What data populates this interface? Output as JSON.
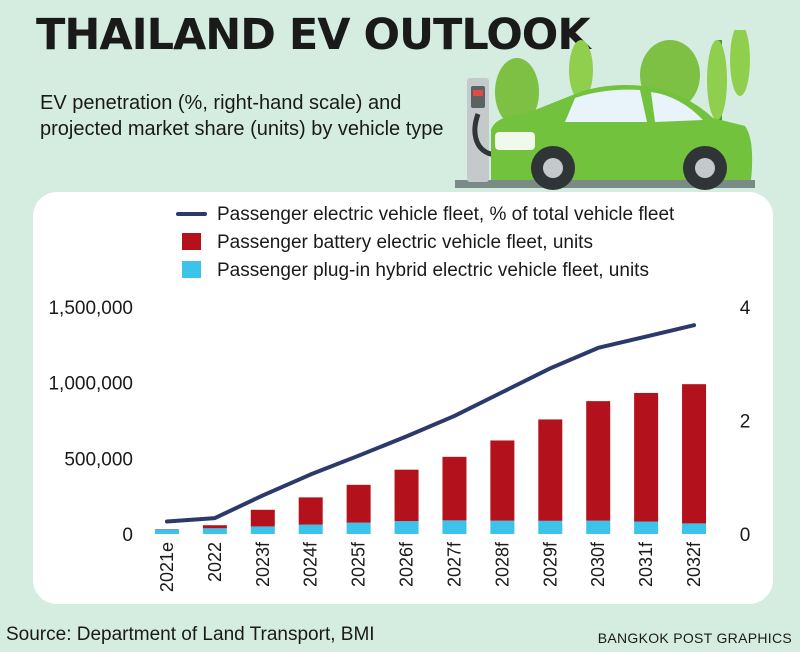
{
  "header": {
    "title": "THAILAND EV OUTLOOK",
    "subtitle": "EV penetration (%, right-hand scale) and projected market share (units) by vehicle type"
  },
  "footer": {
    "source": "Source:  Department of Land Transport, BMI",
    "credit": "BANGKOK POST GRAPHICS"
  },
  "illustration": {
    "icon": "ev-car-charging-icon"
  },
  "colors": {
    "background": "#d5ede0",
    "line": "#2b3a6b",
    "bev": "#b3121d",
    "phev": "#3cc3ea"
  },
  "chart_data": {
    "type": "bar",
    "stacked": true,
    "categories": [
      "2021e",
      "2022",
      "2023f",
      "2024f",
      "2025f",
      "2026f",
      "2027f",
      "2028f",
      "2029f",
      "2030f",
      "2031f",
      "2032f"
    ],
    "series": [
      {
        "name": "Passenger battery electric vehicle fleet, units",
        "type": "bar",
        "values": [
          2000,
          20000,
          110000,
          180000,
          250000,
          340000,
          420000,
          530000,
          670000,
          790000,
          850000,
          920000
        ]
      },
      {
        "name": "Passenger plug-in hybrid electric vehicle fleet, units",
        "type": "bar",
        "values": [
          30000,
          38000,
          50000,
          62000,
          75000,
          85000,
          90000,
          88000,
          87000,
          88000,
          82000,
          70000
        ]
      },
      {
        "name": "Passenger electric vehicle fleet, % of total vehicle fleet",
        "type": "line",
        "axis": "right",
        "values": [
          0.22,
          0.28,
          0.68,
          1.05,
          1.38,
          1.72,
          2.08,
          2.5,
          2.92,
          3.28,
          3.48,
          3.68
        ]
      }
    ],
    "y_left": {
      "range": [
        0,
        1500000
      ],
      "ticks": [
        "0",
        "500,000",
        "1,000,000",
        "1,500,000"
      ]
    },
    "y_right": {
      "range": [
        0,
        4
      ],
      "ticks": [
        "0",
        "2",
        "4"
      ]
    },
    "legend_position": "top",
    "grid": false
  }
}
